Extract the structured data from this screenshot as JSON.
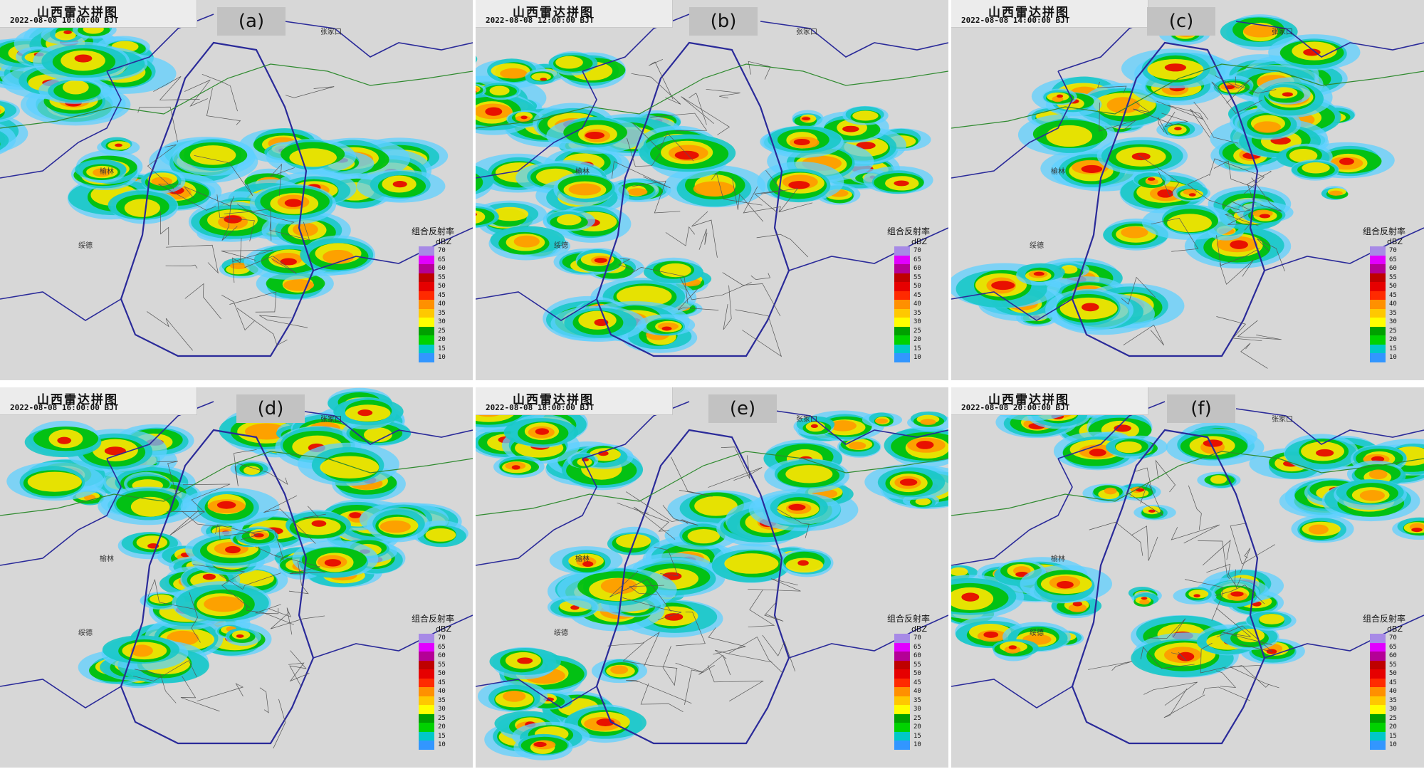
{
  "panels": [
    {
      "title": "山西雷达拼图",
      "time": "2022-08-08 10:00:00 BJT",
      "label": "(a)"
    },
    {
      "title": "山西雷达拼图",
      "time": "2022-08-08 12:00:00 BJT",
      "label": "(b)"
    },
    {
      "title": "山西雷达拼图",
      "time": "2022-08-08 14:00:00 BJT",
      "label": "(c)"
    },
    {
      "title": "山西雷达拼图",
      "time": "2022-08-08 16:00:00 BJT",
      "label": "(d)"
    },
    {
      "title": "山西雷达拼图",
      "time": "2022-08-08 18:00:00 BJT",
      "label": "(e)"
    },
    {
      "title": "山西雷达拼图",
      "time": "2022-08-08 20:00:00 BJT",
      "label": "(f)"
    }
  ],
  "legend": {
    "title": "组合反射率",
    "unit": "dBZ",
    "levels": [
      {
        "value": "70",
        "color": "#a78ae6"
      },
      {
        "value": "65",
        "color": "#e100ff"
      },
      {
        "value": "60",
        "color": "#b40096"
      },
      {
        "value": "55",
        "color": "#be0000"
      },
      {
        "value": "50",
        "color": "#e60000"
      },
      {
        "value": "45",
        "color": "#ff2a00"
      },
      {
        "value": "40",
        "color": "#ff9000"
      },
      {
        "value": "35",
        "color": "#ffc800"
      },
      {
        "value": "30",
        "color": "#ffff00"
      },
      {
        "value": "25",
        "color": "#00a000"
      },
      {
        "value": "20",
        "color": "#00d200"
      },
      {
        "value": "15",
        "color": "#00c8c8"
      },
      {
        "value": "10",
        "color": "#3296ff"
      }
    ]
  },
  "place_names": {
    "zhangjiakou": "张家口",
    "yulin": "榆林",
    "suide": "绥德"
  }
}
